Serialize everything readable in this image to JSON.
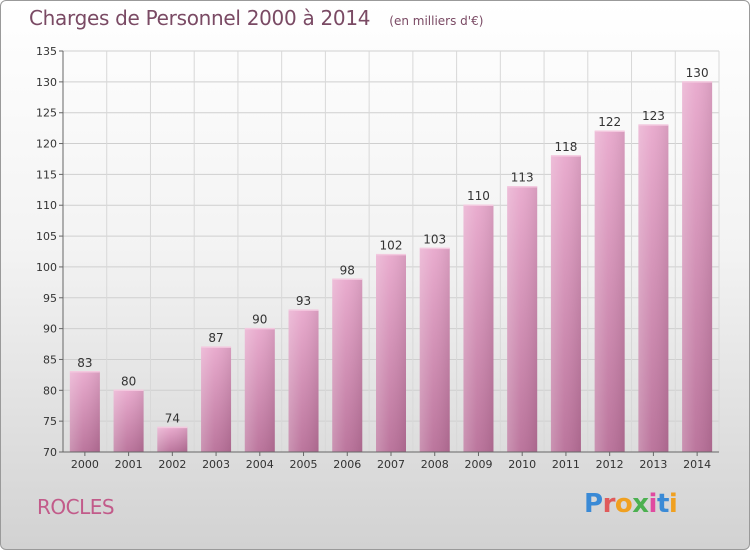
{
  "header": {
    "title": "Charges de Personnel 2000 à 2014",
    "unit": "(en milliers d'€)"
  },
  "footer": {
    "town": "ROCLES",
    "logo": "Proxiti"
  },
  "chart_data": {
    "type": "bar",
    "categories": [
      "2000",
      "2001",
      "2002",
      "2003",
      "2004",
      "2005",
      "2006",
      "2007",
      "2008",
      "2009",
      "2010",
      "2011",
      "2012",
      "2013",
      "2014"
    ],
    "values": [
      83,
      80,
      74,
      87,
      90,
      93,
      98,
      102,
      103,
      110,
      113,
      118,
      122,
      123,
      130
    ],
    "ylim": [
      70,
      135
    ],
    "yticks": [
      70,
      75,
      80,
      85,
      90,
      95,
      100,
      105,
      110,
      115,
      120,
      125,
      130,
      135
    ],
    "grid": true,
    "bar_color": "#d98bb6",
    "axis_color": "#666666"
  }
}
